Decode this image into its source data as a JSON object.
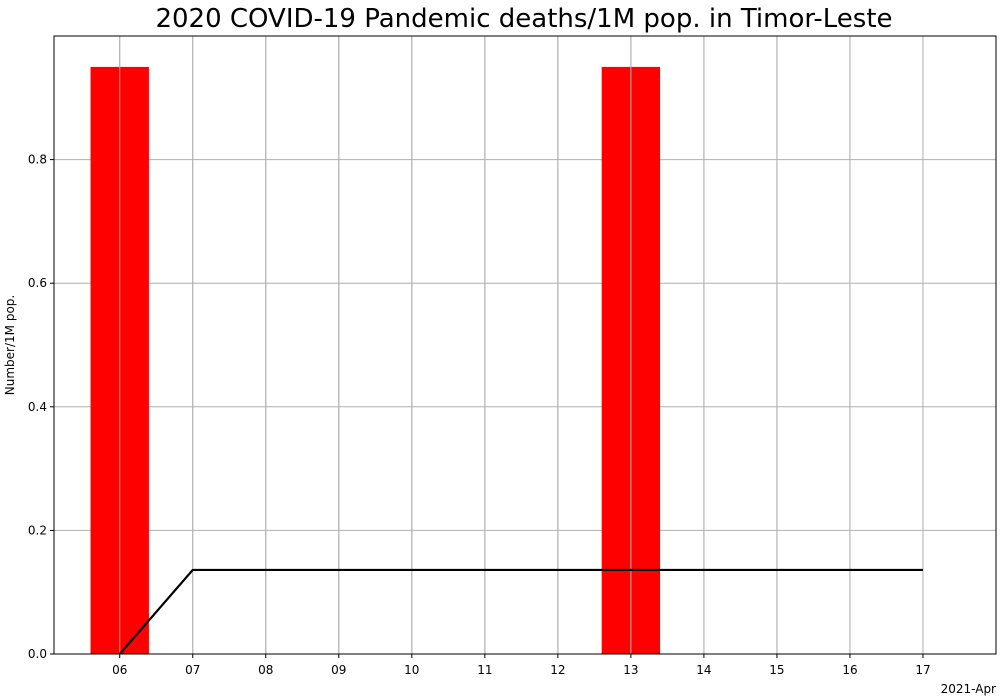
{
  "chart_data": {
    "type": "bar",
    "title": "2020 COVID-19 Pandemic deaths/1M pop. in Timor-Leste",
    "xlabel": "",
    "ylabel": "Number/1M pop.",
    "x_offset_label": "2021-Apr",
    "categories": [
      "06",
      "07",
      "08",
      "09",
      "10",
      "11",
      "12",
      "13",
      "14",
      "15",
      "16",
      "17"
    ],
    "xlim": [
      5.1,
      18.0
    ],
    "ylim": [
      0.0,
      1.0
    ],
    "yticks": [
      0.0,
      0.2,
      0.4,
      0.6,
      0.8
    ],
    "ytick_labels": [
      "0.0",
      "0.2",
      "0.4",
      "0.6",
      "0.8"
    ],
    "grid": true,
    "series": [
      {
        "kind": "bar",
        "color": "#ff0000",
        "values": [
          0.95,
          0,
          0,
          0,
          0,
          0,
          0,
          0.95,
          0,
          0,
          0,
          0
        ]
      },
      {
        "kind": "line",
        "color": "#000000",
        "values": [
          0.0,
          0.136,
          0.136,
          0.136,
          0.136,
          0.136,
          0.136,
          0.136,
          0.136,
          0.136,
          0.136,
          0.136
        ]
      }
    ]
  }
}
